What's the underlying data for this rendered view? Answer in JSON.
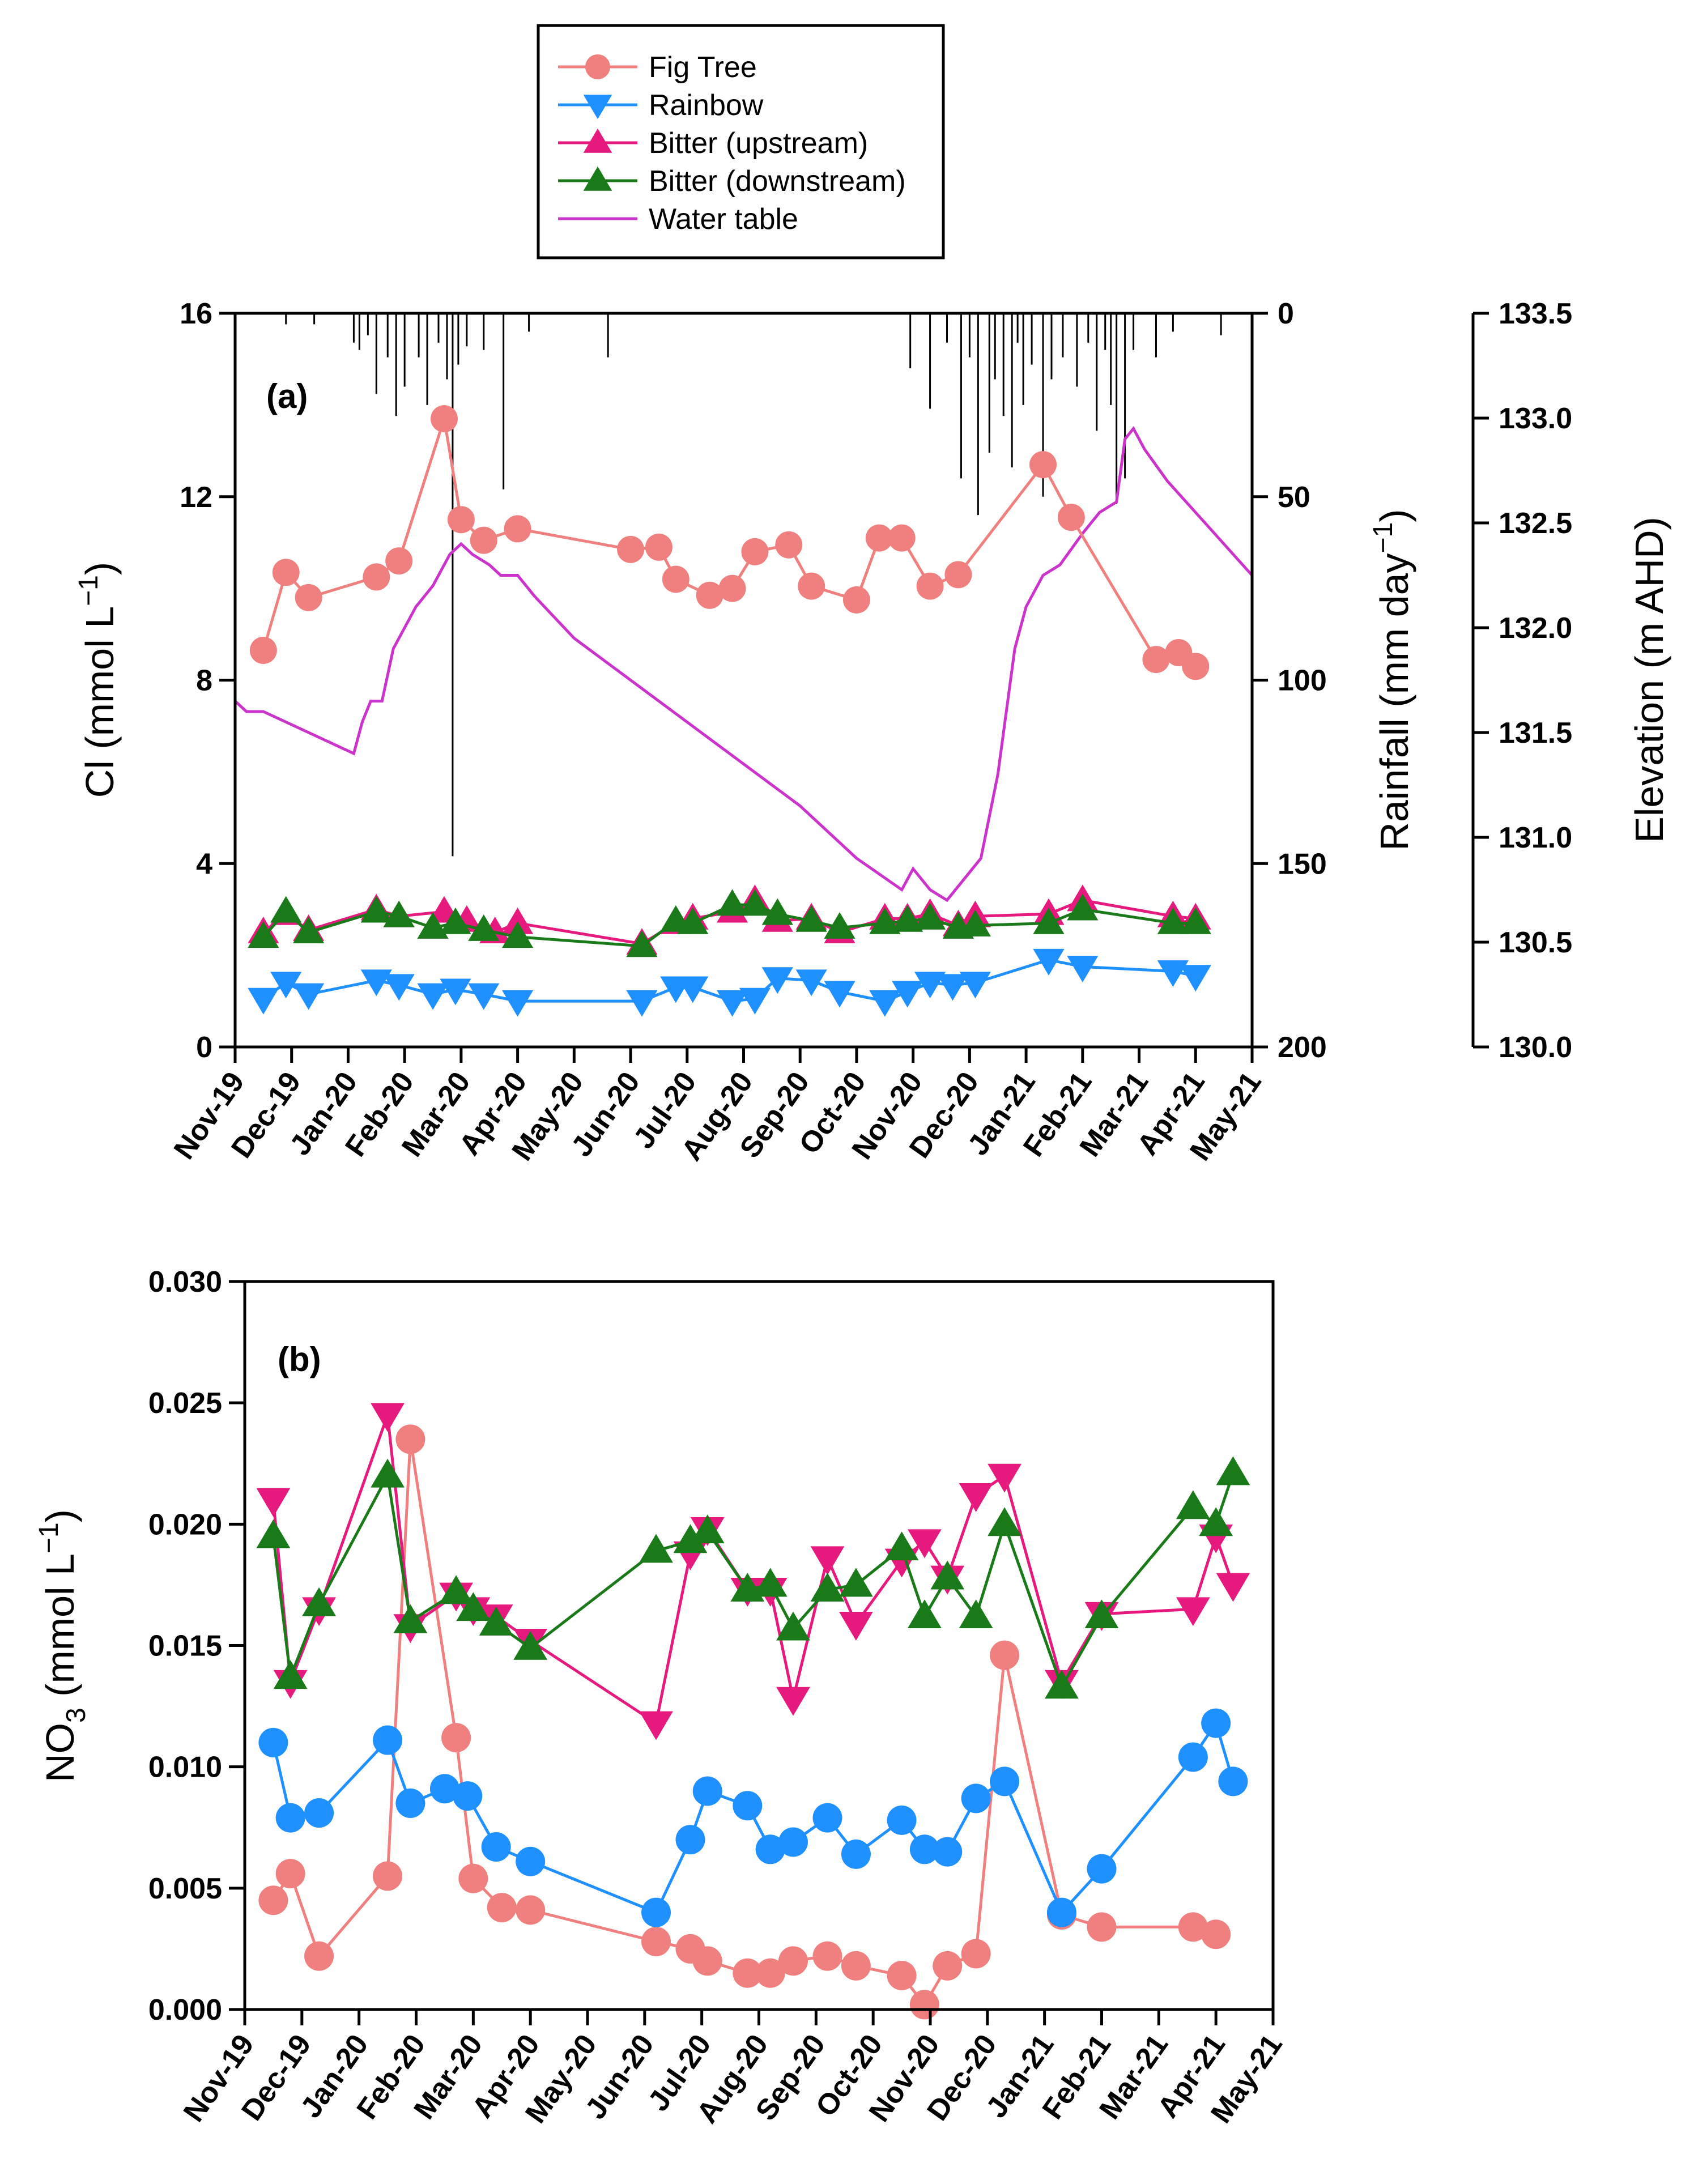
{
  "colors": {
    "fig_tree": "#F08080",
    "rainbow": "#1E90FF",
    "bitter_up": "#E6197F",
    "bitter_down": "#1A7A1A",
    "water_table": "#CC33CC",
    "rainfall": "#000000",
    "axis": "#000000"
  },
  "legend": {
    "items": [
      {
        "label": "Fig Tree",
        "marker": "circle",
        "color": "#F08080"
      },
      {
        "label": "Rainbow",
        "marker": "triangle-down",
        "color": "#1E90FF"
      },
      {
        "label": "Bitter (upstream)",
        "marker": "triangle-up",
        "color": "#E6197F"
      },
      {
        "label": "Bitter (downstream)",
        "marker": "triangle-up",
        "color": "#1A7A1A"
      },
      {
        "label": "Water table",
        "marker": "line",
        "color": "#CC33CC"
      }
    ]
  },
  "months": [
    "Nov-19",
    "Dec-19",
    "Jan-20",
    "Feb-20",
    "Mar-20",
    "Apr-20",
    "May-20",
    "Jun-20",
    "Jul-20",
    "Aug-20",
    "Sep-20",
    "Oct-20",
    "Nov-20",
    "Dec-20",
    "Jan-21",
    "Feb-21",
    "Mar-21",
    "Apr-21",
    "May-21"
  ],
  "chart_data": [
    {
      "panel": "(a)",
      "type": "line",
      "x_unit": "months since Nov-19",
      "xlim": [
        0,
        18
      ],
      "ylabel_main": "Cl",
      "ylabel_unit": "(mmol L",
      "ylabel_sup": "−1",
      "ylim": [
        0,
        16
      ],
      "yticks": [
        "0",
        "4",
        "8",
        "12",
        "16"
      ],
      "y2label_main": "Rainfall",
      "y2label_unit": "(mm day",
      "y2label_sup": "−1",
      "y2lim": [
        0,
        200
      ],
      "y2_reversed": true,
      "y2ticks": [
        "0",
        "50",
        "100",
        "150",
        "200"
      ],
      "y3label": "Elevation (m AHD)",
      "y3lim": [
        130.0,
        133.5
      ],
      "y3ticks": [
        "130.0",
        "130.5",
        "131.0",
        "131.5",
        "132.0",
        "132.5",
        "133.0",
        "133.5"
      ],
      "series": [
        {
          "name": "Fig Tree",
          "color": "#F08080",
          "marker": "circle",
          "x": [
            0.5,
            0.9,
            1.3,
            2.5,
            2.9,
            3.7,
            4.0,
            4.4,
            5.0,
            7.0,
            7.5,
            7.8,
            8.4,
            8.8,
            9.2,
            9.8,
            10.2,
            11.0,
            11.4,
            11.8,
            12.3,
            12.8,
            14.3,
            14.8,
            16.3,
            16.7,
            17.0
          ],
          "y": [
            8.65,
            10.35,
            9.8,
            10.25,
            10.6,
            13.7,
            11.5,
            11.05,
            11.3,
            10.85,
            10.9,
            10.2,
            9.85,
            10.0,
            10.8,
            10.95,
            10.05,
            9.75,
            11.1,
            11.1,
            10.05,
            10.3,
            12.7,
            11.55,
            8.45,
            8.6,
            8.3
          ]
        },
        {
          "name": "Rainbow",
          "color": "#1E90FF",
          "marker": "triangle-down",
          "x": [
            0.5,
            0.9,
            1.3,
            2.5,
            2.9,
            3.5,
            3.9,
            4.4,
            5.0,
            7.2,
            7.8,
            8.1,
            8.8,
            9.2,
            9.6,
            10.2,
            10.7,
            11.5,
            11.9,
            12.3,
            12.7,
            13.1,
            14.4,
            15.0,
            16.6,
            17.0
          ],
          "y": [
            1.05,
            1.4,
            1.15,
            1.45,
            1.35,
            1.15,
            1.25,
            1.15,
            1.0,
            1.0,
            1.3,
            1.3,
            1.0,
            1.05,
            1.5,
            1.45,
            1.2,
            1.0,
            1.2,
            1.4,
            1.35,
            1.4,
            1.9,
            1.75,
            1.65,
            1.55
          ]
        },
        {
          "name": "Bitter (upstream)",
          "color": "#E6197F",
          "marker": "triangle-up",
          "x": [
            0.5,
            0.9,
            1.3,
            2.5,
            2.9,
            3.7,
            4.1,
            4.6,
            5.0,
            7.2,
            7.8,
            8.1,
            8.8,
            9.2,
            9.6,
            10.2,
            10.7,
            11.5,
            11.9,
            12.3,
            12.8,
            13.1,
            14.4,
            15.0,
            16.6,
            17.0
          ],
          "y": [
            2.5,
            2.9,
            2.55,
            3.0,
            2.85,
            2.95,
            2.75,
            2.5,
            2.7,
            2.25,
            2.7,
            2.8,
            2.95,
            3.2,
            2.75,
            2.8,
            2.5,
            2.8,
            2.8,
            2.9,
            2.65,
            2.85,
            2.9,
            3.2,
            2.85,
            2.8
          ]
        },
        {
          "name": "Bitter (downstream)",
          "color": "#1A7A1A",
          "marker": "triangle-up",
          "x": [
            0.5,
            0.9,
            1.3,
            2.5,
            2.9,
            3.5,
            3.9,
            4.4,
            5.0,
            7.2,
            7.8,
            8.1,
            8.8,
            9.2,
            9.6,
            10.2,
            10.7,
            11.5,
            11.9,
            12.3,
            12.8,
            13.1,
            14.4,
            15.0,
            16.6,
            17.0
          ],
          "y": [
            2.4,
            2.95,
            2.5,
            2.95,
            2.85,
            2.6,
            2.7,
            2.55,
            2.4,
            2.2,
            2.75,
            2.7,
            3.1,
            3.1,
            2.9,
            2.75,
            2.6,
            2.7,
            2.75,
            2.8,
            2.6,
            2.65,
            2.7,
            3.0,
            2.7,
            2.7
          ]
        },
        {
          "name": "Water table",
          "color": "#CC33CC",
          "marker": "line",
          "axis": "y3",
          "x": [
            0.0,
            0.2,
            0.5,
            0.9,
            1.3,
            1.7,
            2.1,
            2.25,
            2.4,
            2.6,
            2.8,
            3.0,
            3.2,
            3.5,
            3.8,
            4.0,
            4.2,
            4.5,
            4.7,
            5.0,
            5.3,
            6.0,
            7.0,
            8.0,
            9.0,
            10.0,
            11.0,
            11.8,
            12.0,
            12.3,
            12.6,
            12.9,
            13.2,
            13.5,
            13.8,
            14.0,
            14.3,
            14.6,
            15.0,
            15.3,
            15.6,
            15.75,
            15.9,
            16.1,
            16.5,
            17.0,
            17.5,
            18.0
          ],
          "y": [
            131.65,
            131.6,
            131.6,
            131.55,
            131.5,
            131.45,
            131.4,
            131.55,
            131.65,
            131.65,
            131.9,
            132.0,
            132.1,
            132.2,
            132.35,
            132.4,
            132.35,
            132.3,
            132.25,
            132.25,
            132.15,
            131.95,
            131.75,
            131.55,
            131.35,
            131.15,
            130.9,
            130.75,
            130.85,
            130.75,
            130.7,
            130.8,
            130.9,
            131.3,
            131.9,
            132.1,
            132.25,
            132.3,
            132.45,
            132.55,
            132.6,
            132.9,
            132.95,
            132.85,
            132.7,
            132.55,
            132.4,
            132.25
          ]
        },
        {
          "name": "Rainfall",
          "color": "#000000",
          "marker": "bar",
          "axis": "y2",
          "x": [
            0.9,
            1.4,
            2.1,
            2.2,
            2.35,
            2.5,
            2.7,
            2.85,
            3.0,
            3.25,
            3.4,
            3.6,
            3.75,
            3.85,
            3.95,
            4.1,
            4.4,
            4.75,
            5.2,
            6.6,
            11.95,
            12.3,
            12.6,
            12.85,
            13.0,
            13.15,
            13.35,
            13.45,
            13.6,
            13.75,
            13.85,
            13.95,
            14.1,
            14.3,
            14.45,
            14.65,
            14.9,
            15.1,
            15.25,
            15.4,
            15.5,
            15.6,
            15.75,
            15.9,
            16.3,
            16.6,
            17.45
          ],
          "y": [
            3,
            3,
            8,
            10,
            6,
            22,
            12,
            28,
            20,
            12,
            25,
            8,
            18,
            148,
            14,
            9,
            10,
            48,
            5,
            12,
            15,
            26,
            8,
            45,
            12,
            55,
            38,
            18,
            28,
            42,
            8,
            25,
            14,
            50,
            18,
            12,
            20,
            8,
            32,
            10,
            25,
            52,
            45,
            10,
            12,
            5,
            6
          ]
        }
      ]
    },
    {
      "panel": "(b)",
      "type": "line",
      "x_unit": "months since Nov-19",
      "xlim": [
        0,
        18
      ],
      "ylabel_main": "NO",
      "ylabel_sub": "3",
      "ylabel_unit": " (mmol L",
      "ylabel_sup": "−1",
      "ylim": [
        0,
        0.03
      ],
      "yticks": [
        "0.000",
        "0.005",
        "0.010",
        "0.015",
        "0.020",
        "0.025",
        "0.030"
      ],
      "series": [
        {
          "name": "Fig Tree",
          "color": "#F08080",
          "marker": "circle",
          "x": [
            0.5,
            0.8,
            1.3,
            2.5,
            2.9,
            3.7,
            4.0,
            4.5,
            5.0,
            7.2,
            7.8,
            8.1,
            8.8,
            9.2,
            9.6,
            10.2,
            10.7,
            11.5,
            11.9,
            12.3,
            12.8,
            13.3,
            14.3,
            15.0,
            16.6,
            17.0
          ],
          "y": [
            0.0045,
            0.0056,
            0.0022,
            0.0055,
            0.0235,
            0.0112,
            0.0054,
            0.0042,
            0.0041,
            0.0028,
            0.0025,
            0.002,
            0.0015,
            0.0015,
            0.002,
            0.0022,
            0.0018,
            0.0014,
            0.0002,
            0.0018,
            0.0023,
            0.0146,
            0.0039,
            0.0034,
            0.0034,
            0.0031
          ]
        },
        {
          "name": "Rainbow",
          "color": "#1E90FF",
          "marker": "circle",
          "x": [
            0.5,
            0.8,
            1.3,
            2.5,
            2.9,
            3.5,
            3.9,
            4.4,
            5.0,
            7.2,
            7.8,
            8.1,
            8.8,
            9.2,
            9.6,
            10.2,
            10.7,
            11.5,
            11.9,
            12.3,
            12.8,
            13.3,
            14.3,
            15.0,
            16.6,
            17.0,
            17.3
          ],
          "y": [
            0.011,
            0.0079,
            0.0081,
            0.0111,
            0.0085,
            0.0091,
            0.0088,
            0.0067,
            0.0061,
            0.004,
            0.007,
            0.009,
            0.0084,
            0.0066,
            0.0069,
            0.0079,
            0.0064,
            0.0078,
            0.0066,
            0.0065,
            0.0087,
            0.0094,
            0.004,
            0.0058,
            0.0104,
            0.0118,
            0.0094
          ]
        },
        {
          "name": "Bitter (upstream)",
          "color": "#E6197F",
          "marker": "triangle-down",
          "x": [
            0.5,
            0.8,
            1.3,
            2.5,
            2.9,
            3.7,
            4.0,
            4.4,
            5.0,
            7.2,
            7.8,
            8.1,
            8.8,
            9.2,
            9.6,
            10.2,
            10.7,
            11.5,
            11.9,
            12.3,
            12.8,
            13.3,
            14.3,
            15.0,
            16.6,
            17.0,
            17.3
          ],
          "y": [
            0.021,
            0.0135,
            0.0165,
            0.0245,
            0.0158,
            0.0171,
            0.0165,
            0.0162,
            0.0152,
            0.0118,
            0.0188,
            0.0198,
            0.0173,
            0.0173,
            0.0128,
            0.0186,
            0.0159,
            0.0185,
            0.0193,
            0.0178,
            0.0212,
            0.022,
            0.0135,
            0.0163,
            0.0165,
            0.0195,
            0.0175
          ]
        },
        {
          "name": "Bitter (downstream)",
          "color": "#1A7A1A",
          "marker": "triangle-up",
          "x": [
            0.5,
            0.8,
            1.3,
            2.5,
            2.9,
            3.7,
            4.0,
            4.4,
            5.0,
            7.2,
            7.8,
            8.1,
            8.8,
            9.2,
            9.6,
            10.2,
            10.7,
            11.5,
            11.9,
            12.3,
            12.8,
            13.3,
            14.3,
            15.0,
            16.6,
            17.0,
            17.3
          ],
          "y": [
            0.0195,
            0.0137,
            0.0167,
            0.022,
            0.016,
            0.0172,
            0.0165,
            0.0159,
            0.0149,
            0.0189,
            0.0193,
            0.0197,
            0.0173,
            0.0175,
            0.0157,
            0.0173,
            0.0175,
            0.019,
            0.0162,
            0.0178,
            0.0162,
            0.02,
            0.0133,
            0.0162,
            0.0207,
            0.02,
            0.0221
          ]
        }
      ]
    }
  ]
}
